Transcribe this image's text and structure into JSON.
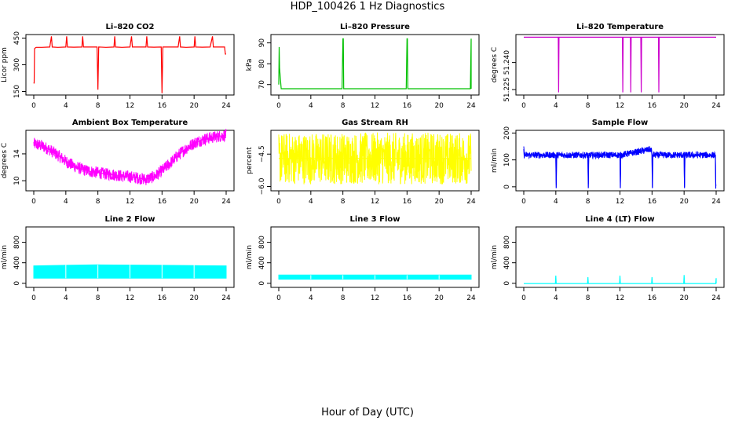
{
  "figure": {
    "title": "HDP_100426  1 Hz Diagnostics",
    "xlabel": "Hour of Day (UTC)"
  },
  "chart_data": [
    {
      "type": "line",
      "title": "Li–820 CO2",
      "ylabel": "Licor ppm",
      "color": "#ff0000",
      "xlim": [
        0,
        24
      ],
      "ylim": [
        130,
        470
      ],
      "xticks": [
        0,
        4,
        8,
        12,
        16,
        20,
        24
      ],
      "yticks": [
        150,
        300,
        450
      ],
      "yticklabels": [
        "150",
        "300",
        "450"
      ],
      "series": [
        {
          "x": [
            0,
            0.05,
            0.1,
            0.2,
            0.3,
            1,
            2,
            2.2,
            2.3,
            3,
            4,
            4.1,
            4.2,
            5,
            6,
            6.1,
            6.2,
            7,
            7.9,
            8,
            8.1,
            9,
            10,
            10.1,
            10.2,
            11,
            12,
            12.2,
            12.3,
            13,
            14,
            14.1,
            14.2,
            15,
            15.9,
            16,
            16.1,
            17,
            18,
            18.2,
            18.3,
            19,
            20,
            20.1,
            20.2,
            21,
            22,
            22.3,
            22.4,
            23,
            23.8,
            23.9,
            24
          ],
          "y": [
            200,
            195,
            390,
            395,
            398,
            398,
            400,
            460,
            400,
            398,
            400,
            460,
            400,
            399,
            400,
            460,
            400,
            400,
            400,
            160,
            400,
            398,
            400,
            460,
            400,
            398,
            400,
            460,
            400,
            400,
            400,
            460,
            400,
            399,
            400,
            140,
            400,
            400,
            400,
            460,
            400,
            398,
            400,
            460,
            400,
            399,
            400,
            460,
            400,
            400,
            400,
            360,
            360
          ]
        }
      ]
    },
    {
      "type": "line",
      "title": "Li–820 Pressure",
      "ylabel": "kPa",
      "color": "#00c000",
      "xlim": [
        0,
        24
      ],
      "ylim": [
        65,
        94
      ],
      "xticks": [
        0,
        4,
        8,
        12,
        16,
        20,
        24
      ],
      "yticks": [
        70,
        80,
        90
      ],
      "yticklabels": [
        "70",
        "80",
        "90"
      ],
      "series": [
        {
          "x": [
            0,
            0.05,
            0.1,
            0.3,
            4,
            7.9,
            8,
            8.05,
            8.1,
            12,
            15.9,
            16,
            16.05,
            16.1,
            20,
            23.9,
            24,
            24
          ],
          "y": [
            70,
            88,
            78,
            68,
            68,
            68,
            92,
            92,
            68,
            68,
            68,
            92,
            92,
            68,
            68,
            68,
            92,
            68
          ]
        }
      ]
    },
    {
      "type": "line",
      "title": "Li–820 Temperature",
      "ylabel": "degrees C",
      "color": "#cc00cc",
      "xlim": [
        0,
        24
      ],
      "ylim": [
        51.222,
        51.2555
      ],
      "xticks": [
        0,
        4,
        8,
        12,
        16,
        20,
        24
      ],
      "yticks": [
        51.225,
        51.24
      ],
      "yticklabels": [
        "51.225",
        "51.240"
      ],
      "series": [
        {
          "x": [
            0,
            4.3,
            4.35,
            4.4,
            12.3,
            12.35,
            12.4,
            13.3,
            13.35,
            13.4,
            14.6,
            14.65,
            14.7,
            16.8,
            16.85,
            16.9,
            24
          ],
          "y": [
            51.254,
            51.254,
            51.2235,
            51.254,
            51.254,
            51.2235,
            51.254,
            51.254,
            51.2235,
            51.254,
            51.254,
            51.2235,
            51.254,
            51.254,
            51.2235,
            51.254,
            51.254
          ]
        }
      ]
    },
    {
      "type": "line",
      "title": "Ambient Box Temperature",
      "ylabel": "degrees C",
      "color": "#ff00ff",
      "xlim": [
        0,
        24
      ],
      "ylim": [
        8.5,
        17.5
      ],
      "xticks": [
        0,
        4,
        8,
        12,
        16,
        20,
        24
      ],
      "yticks": [
        10,
        14
      ],
      "yticklabels": [
        "10",
        "14"
      ],
      "series": [
        {
          "x": [
            0,
            1,
            2,
            3,
            4,
            5,
            6,
            7,
            8,
            9,
            10,
            11,
            12,
            13,
            14,
            15,
            16,
            17,
            18,
            19,
            20,
            21,
            22,
            23,
            24
          ],
          "y": [
            15.5,
            15.2,
            14.6,
            13.8,
            12.9,
            12.2,
            11.7,
            11.4,
            11.2,
            11.0,
            10.9,
            10.7,
            10.6,
            10.4,
            10.2,
            10.6,
            11.5,
            12.6,
            13.8,
            14.8,
            15.6,
            16.1,
            16.4,
            16.6,
            16.8
          ]
        }
      ],
      "noise_band": 0.9
    },
    {
      "type": "line",
      "title": "Gas Stream RH",
      "ylabel": "percent",
      "color": "#ffff00",
      "xlim": [
        0,
        24
      ],
      "ylim": [
        -6.2,
        -3.4
      ],
      "xticks": [
        0,
        4,
        8,
        12,
        16,
        20,
        24
      ],
      "yticks": [
        -6.0,
        -4.5
      ],
      "yticklabels": [
        "−6.0",
        "−4.5"
      ],
      "series": [
        {
          "x": [
            0,
            4,
            8,
            12,
            16,
            20,
            24
          ],
          "y": [
            -4.7,
            -4.7,
            -4.7,
            -4.7,
            -4.7,
            -4.7,
            -4.7
          ]
        }
      ],
      "noise_band": 1.2
    },
    {
      "type": "line",
      "title": "Sample Flow",
      "ylabel": "ml/min",
      "color": "#0000ff",
      "xlim": [
        0,
        24
      ],
      "ylim": [
        -15,
        210
      ],
      "xticks": [
        0,
        4,
        8,
        12,
        16,
        20,
        24
      ],
      "yticks": [
        0,
        100,
        200
      ],
      "yticklabels": [
        "0",
        "100",
        "200"
      ],
      "series": [
        {
          "x": [
            0,
            0.05,
            0.2,
            4,
            4.05,
            4.1,
            8,
            8.05,
            8.1,
            12,
            12.05,
            12.1,
            15.9,
            16,
            16.05,
            16.1,
            20,
            20.05,
            20.1,
            23.9,
            23.95,
            24
          ],
          "y": [
            140,
            120,
            118,
            118,
            -5,
            118,
            118,
            -5,
            118,
            118,
            -5,
            118,
            140,
            118,
            -5,
            118,
            118,
            -5,
            118,
            118,
            -5,
            -5
          ]
        }
      ],
      "noise_band": 12
    },
    {
      "type": "area",
      "title": "Line 2 Flow",
      "ylabel": "ml/min",
      "color": "#00ffff",
      "xlim": [
        0,
        24
      ],
      "ylim": [
        -80,
        1100
      ],
      "xticks": [
        0,
        4,
        8,
        12,
        16,
        20,
        24
      ],
      "yticks": [
        0,
        400,
        800
      ],
      "yticklabels": [
        "0",
        "400",
        "800"
      ],
      "series": [
        {
          "x": [
            0,
            4,
            4,
            8,
            8,
            12,
            12,
            16,
            16,
            20,
            20,
            24
          ],
          "low": [
            100,
            100,
            100,
            100,
            100,
            100,
            100,
            100,
            100,
            100,
            100,
            100
          ],
          "high": [
            340,
            350,
            350,
            360,
            360,
            355,
            355,
            350,
            350,
            345,
            345,
            340
          ]
        }
      ]
    },
    {
      "type": "area",
      "title": "Line 3 Flow",
      "ylabel": "ml/min",
      "color": "#00ffff",
      "xlim": [
        0,
        24
      ],
      "ylim": [
        -80,
        1100
      ],
      "xticks": [
        0,
        4,
        8,
        12,
        16,
        20,
        24
      ],
      "yticks": [
        0,
        400,
        800
      ],
      "yticklabels": [
        "0",
        "400",
        "800"
      ],
      "series": [
        {
          "x": [
            0,
            4,
            8,
            12,
            16,
            20,
            24
          ],
          "low": [
            80,
            80,
            80,
            80,
            80,
            80,
            80
          ],
          "high": [
            160,
            160,
            160,
            160,
            160,
            160,
            160
          ]
        }
      ]
    },
    {
      "type": "line",
      "title": "Line 4 (LT) Flow",
      "ylabel": "ml/min",
      "color": "#00ffff",
      "xlim": [
        0,
        24
      ],
      "ylim": [
        -80,
        1100
      ],
      "xticks": [
        0,
        4,
        8,
        12,
        16,
        20,
        24
      ],
      "yticks": [
        0,
        400,
        800
      ],
      "yticklabels": [
        "0",
        "400",
        "800"
      ],
      "series": [
        {
          "x": [
            0,
            3.95,
            4,
            4.05,
            7.95,
            8,
            8.05,
            11.95,
            12,
            12.05,
            15.95,
            16,
            16.05,
            19.95,
            20,
            20.05,
            23.95,
            24,
            24
          ],
          "y": [
            -5,
            -5,
            150,
            -5,
            -5,
            120,
            -5,
            -5,
            150,
            -5,
            -5,
            120,
            -5,
            -5,
            160,
            -5,
            -5,
            100,
            -5
          ]
        }
      ]
    }
  ]
}
